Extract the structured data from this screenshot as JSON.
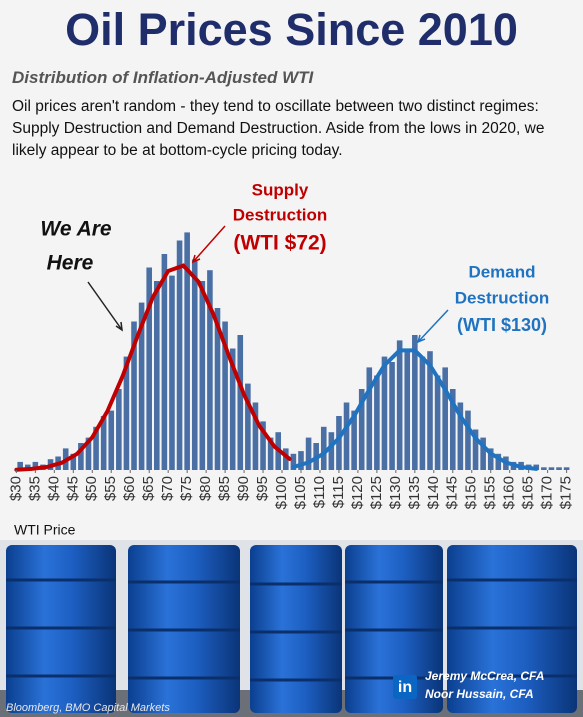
{
  "title": "Oil Prices Since 2010",
  "subtitle": "Distribution of Inflation-Adjusted WTI",
  "description": "Oil prices aren't random - they tend to oscillate between two distinct regimes: Supply Destruction and Demand Destruction. Aside from the lows in 2020, we likely appear to be at bottom-cycle pricing today.",
  "chart_data": {
    "type": "histogram",
    "x_label": "WTI Price",
    "color": "#4a6fa5",
    "bins": [
      30,
      32,
      34,
      36,
      38,
      40,
      42,
      44,
      46,
      48,
      50,
      52,
      54,
      56,
      58,
      60,
      62,
      64,
      66,
      68,
      70,
      72,
      74,
      76,
      78,
      80,
      82,
      84,
      86,
      88,
      90,
      92,
      94,
      96,
      98,
      100,
      102,
      104,
      106,
      108,
      110,
      112,
      114,
      116,
      118,
      120,
      122,
      124,
      126,
      128,
      130,
      132,
      134,
      136,
      138,
      140,
      142,
      144,
      146,
      148,
      150,
      152,
      154,
      156,
      158,
      160,
      162,
      164,
      166,
      168,
      170,
      172,
      174,
      176
    ],
    "values": [
      3,
      2,
      3,
      2,
      4,
      5,
      8,
      6,
      10,
      12,
      16,
      20,
      22,
      30,
      42,
      55,
      62,
      75,
      70,
      80,
      72,
      85,
      88,
      78,
      70,
      74,
      60,
      55,
      45,
      50,
      32,
      25,
      18,
      12,
      14,
      8,
      6,
      7,
      12,
      10,
      16,
      14,
      20,
      25,
      22,
      30,
      38,
      35,
      42,
      40,
      48,
      45,
      50,
      42,
      44,
      35,
      38,
      30,
      25,
      22,
      15,
      12,
      8,
      6,
      5,
      3,
      3,
      2,
      2,
      1,
      1,
      1,
      1
    ],
    "xlim": [
      27,
      178
    ],
    "ylim": [
      0,
      100
    ],
    "xticks": [
      {
        "value": 30,
        "label": "$30"
      },
      {
        "value": 35,
        "label": "$35"
      },
      {
        "value": 40,
        "label": "$40"
      },
      {
        "value": 45,
        "label": "$45"
      },
      {
        "value": 50,
        "label": "$50"
      },
      {
        "value": 55,
        "label": "$55"
      },
      {
        "value": 60,
        "label": "$60"
      },
      {
        "value": 65,
        "label": "$65"
      },
      {
        "value": 70,
        "label": "$70"
      },
      {
        "value": 75,
        "label": "$75"
      },
      {
        "value": 80,
        "label": "$80"
      },
      {
        "value": 85,
        "label": "$85"
      },
      {
        "value": 90,
        "label": "$90"
      },
      {
        "value": 95,
        "label": "$95"
      },
      {
        "value": 100,
        "label": "$100"
      },
      {
        "value": 105,
        "label": "$105"
      },
      {
        "value": 110,
        "label": "$110"
      },
      {
        "value": 115,
        "label": "$115"
      },
      {
        "value": 120,
        "label": "$120"
      },
      {
        "value": 125,
        "label": "$125"
      },
      {
        "value": 130,
        "label": "$130"
      },
      {
        "value": 135,
        "label": "$135"
      },
      {
        "value": 140,
        "label": "$140"
      },
      {
        "value": 145,
        "label": "$145"
      },
      {
        "value": 150,
        "label": "$150"
      },
      {
        "value": 155,
        "label": "$155"
      },
      {
        "value": 160,
        "label": "$160"
      },
      {
        "value": 165,
        "label": "$165"
      },
      {
        "value": 170,
        "label": "$170"
      },
      {
        "value": 175,
        "label": "$175"
      }
    ],
    "curves": [
      {
        "color": "#c00000",
        "x": [
          30,
          34,
          38,
          42,
          46,
          50,
          54,
          58,
          62,
          66,
          70,
          74,
          78,
          82,
          86,
          90,
          94,
          98,
          102
        ],
        "values": [
          0.1,
          0.4,
          1.1,
          2.7,
          6.0,
          12.1,
          21.8,
          34.8,
          49.9,
          64.1,
          73.7,
          75.7,
          69.7,
          57.4,
          42.3,
          27.9,
          16.4,
          8.7,
          4.1
        ]
      },
      {
        "color": "#1f73c0",
        "x": [
          103,
          107,
          111,
          115,
          119,
          123,
          127,
          131,
          135,
          139,
          143,
          147,
          151,
          155,
          159,
          163,
          167
        ],
        "values": [
          1.1,
          2.8,
          6.1,
          11.8,
          20.0,
          29.8,
          38.8,
          44.3,
          44.3,
          38.8,
          29.8,
          20.0,
          11.8,
          6.1,
          2.8,
          1.1,
          0.4
        ]
      }
    ],
    "annotations": {
      "we_are_here": [
        "We Are",
        "Here"
      ],
      "supply": [
        "Supply",
        "Destruction",
        "(WTI $72)"
      ],
      "demand": [
        "Demand",
        "Destruction",
        "(WTI $130)"
      ]
    }
  },
  "source": "Bloomberg, BMO Capital Markets",
  "linkedin_icon": "in",
  "authors": [
    "Jeremy McCrea, CFA",
    "Noor Hussain, CFA"
  ]
}
